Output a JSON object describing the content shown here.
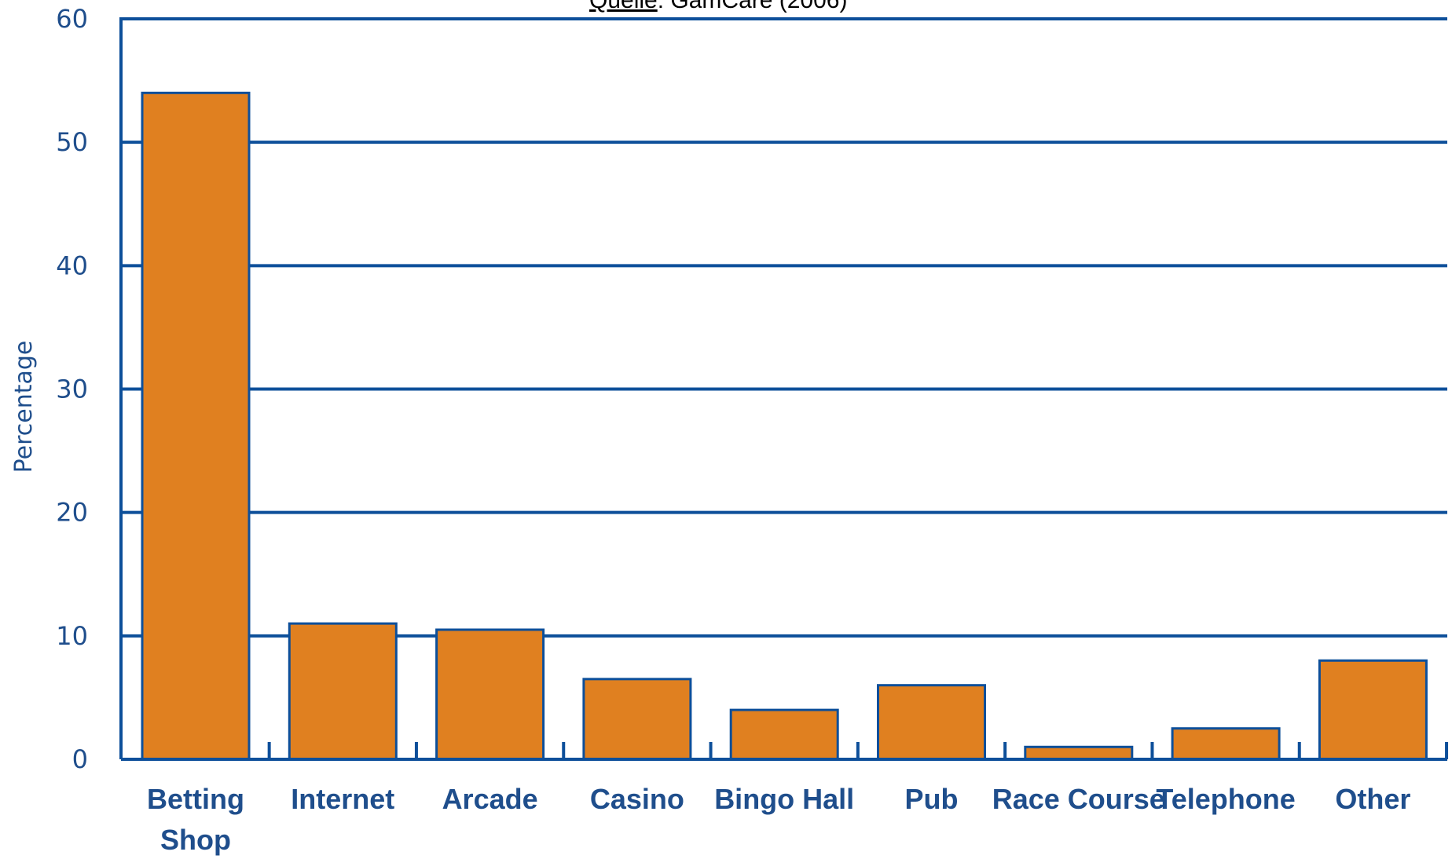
{
  "colors": {
    "bar": "#e08020",
    "bar_edge": "#0d4f9a",
    "axis": "#0d4f9a",
    "grid": "#0d4f9a",
    "text": "#1f4e8c"
  },
  "source": {
    "prefix": "Quelle",
    "rest": ": GamCare (2006)"
  },
  "chart_data": {
    "type": "bar",
    "title": "",
    "xlabel": "",
    "ylabel": "Percentage",
    "ylim": [
      0,
      60
    ],
    "yticks": [
      0,
      10,
      20,
      30,
      40,
      50,
      60
    ],
    "grid": true,
    "categories": [
      [
        "Betting",
        "Shop"
      ],
      [
        "Internet"
      ],
      [
        "Arcade"
      ],
      [
        "Casino"
      ],
      [
        "Bingo Hall"
      ],
      [
        "Pub"
      ],
      [
        "Race Course"
      ],
      [
        "Telephone"
      ],
      [
        "Other"
      ]
    ],
    "values": [
      54,
      11,
      10.5,
      6.5,
      4,
      6,
      1,
      2.5,
      8
    ]
  }
}
